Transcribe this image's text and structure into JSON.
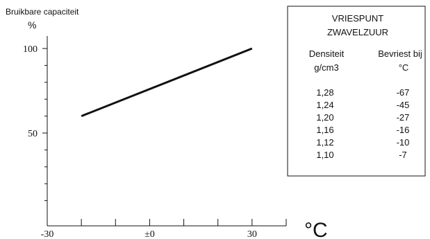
{
  "chart_data": {
    "type": "line",
    "ylabel": "Bruikbare capaciteit",
    "yunit": "%",
    "xunit": "°C",
    "x_tick_labels": [
      "-30",
      "±0",
      "30"
    ],
    "y_tick_labels": [
      "100",
      "50"
    ],
    "x_tick_values": [
      -30,
      0,
      30
    ],
    "y_tick_values": [
      100,
      50
    ],
    "xlim": [
      -30,
      40
    ],
    "ylim": [
      0,
      100
    ],
    "series": [
      {
        "x": [
          -20,
          30
        ],
        "y": [
          60,
          100
        ]
      }
    ]
  },
  "table": {
    "title_line1": "VRIESPUNT",
    "title_line2": "ZWAVELZUUR",
    "col1_header": "Densiteit",
    "col1_unit": "g/cm3",
    "col2_header": "Bevriest bij",
    "col2_unit": "°C",
    "rows": [
      {
        "density": "1,28",
        "freeze": "-67"
      },
      {
        "density": "1,24",
        "freeze": "-45"
      },
      {
        "density": "1,20",
        "freeze": "-27"
      },
      {
        "density": "1,16",
        "freeze": "-16"
      },
      {
        "density": "1,12",
        "freeze": "-10"
      },
      {
        "density": "1,10",
        "freeze": "-7"
      }
    ]
  }
}
